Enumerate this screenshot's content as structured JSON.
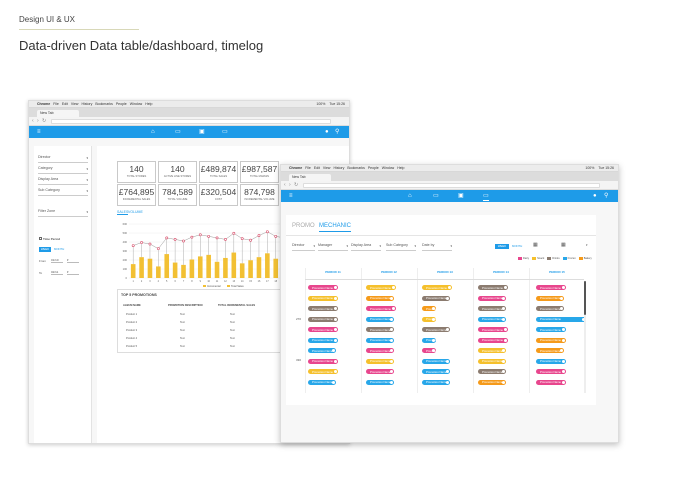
{
  "header": {
    "small": "Design UI & UX",
    "title": "Data-driven Data table/dashboard, timelog"
  },
  "colors": {
    "brand": "#1e9be8",
    "bar": "#f2c033",
    "line": "#d94b68"
  },
  "mac": {
    "items": [
      "Chrome",
      "File",
      "Edit",
      "View",
      "History",
      "Bookmarks",
      "People",
      "Window",
      "Help"
    ],
    "status": "100%",
    "clock1": "Tue 15:26",
    "clock2": "Tue 15:26"
  },
  "tab": "New Tab",
  "filters_left": [
    {
      "label": "Director",
      "value": "▾"
    },
    {
      "label": "Category",
      "value": "▾"
    },
    {
      "label": "Display Area",
      "value": "▾"
    },
    {
      "label": "Sub Category",
      "value": "▾"
    },
    {
      "label": "Filter Zone",
      "value": "▾"
    }
  ],
  "time_period": {
    "label": "Time Period",
    "chip1": "WEEK",
    "chip2": "MONTH",
    "from_label": "From",
    "from_val": "01/10",
    "to_label": "To",
    "to_val": "02/11"
  },
  "kpis": [
    {
      "value": "140",
      "label": "TOTAL STORES"
    },
    {
      "value": "140",
      "label": "ACTIVE LINE STORES"
    },
    {
      "value": "£489,874",
      "label": "TOTAL SALES"
    },
    {
      "value": "£987,587",
      "label": "TOTAL MARGIN"
    },
    {
      "value": "£764,895",
      "label": "INCREMENTAL SALES"
    },
    {
      "value": "784,589",
      "label": "TOTAL VOLUME"
    },
    {
      "value": "£320,504",
      "label": "COST"
    },
    {
      "value": "874,798",
      "label": "INCREMENTAL VOLUME"
    }
  ],
  "chart_tabs": [
    "SALES",
    "VOLUME"
  ],
  "chart_data": {
    "type": "bar",
    "categories": [
      "1",
      "2",
      "3",
      "4",
      "5",
      "6",
      "7",
      "8",
      "9",
      "10",
      "11",
      "12",
      "13",
      "14",
      "15",
      "16",
      "17",
      "18",
      "19",
      "20",
      "21",
      "22",
      "23",
      "24",
      "25",
      "26"
    ],
    "series": [
      {
        "name": "Total Sales",
        "values": [
          180,
          270,
          250,
          150,
          310,
          200,
          170,
          240,
          280,
          300,
          210,
          260,
          330,
          190,
          230,
          270,
          320,
          250,
          200,
          290,
          240,
          300,
          180,
          220,
          260,
          240
        ]
      },
      {
        "name": "Incremental",
        "values": [
          420,
          460,
          440,
          380,
          520,
          500,
          480,
          530,
          560,
          540,
          520,
          500,
          580,
          510,
          490,
          550,
          600,
          540,
          520,
          560,
          530,
          590,
          500,
          520,
          570,
          540
        ]
      }
    ],
    "ylim": [
      0,
      700
    ],
    "yticks": [
      "600",
      "500",
      "400",
      "300",
      "200",
      "100",
      "0"
    ],
    "legend": [
      "Incremental",
      "Total Sales"
    ]
  },
  "top_promos": {
    "title": "TOP 5 PROMOTIONS",
    "headers": [
      "ALBUM NAME",
      "PROMOTION DESCRIPTION",
      "TOTAL INCREMENTAL SALES",
      "TOTAL INCREMENTAL VOLUME"
    ],
    "rows": [
      [
        "Product 1",
        "Text",
        "Text",
        "Text"
      ],
      [
        "Product 2",
        "Text",
        "Text",
        "Text"
      ],
      [
        "Product 3",
        "Text",
        "Text",
        "Text"
      ],
      [
        "Product 4",
        "Text",
        "Text",
        "Text"
      ],
      [
        "Product 5",
        "Text",
        "Text",
        "Text"
      ]
    ]
  },
  "w2": {
    "tabs": [
      "PROMO",
      "MECHANIC"
    ],
    "filters": [
      "Director",
      "Manager",
      "Display Area",
      "Sub Category",
      "Date by"
    ],
    "toggle": [
      "WEEK",
      "MONTH"
    ],
    "legend": [
      {
        "c": "#e8468d",
        "l": "Dairy"
      },
      {
        "c": "#f5c02c",
        "l": "Snack"
      },
      {
        "c": "#8b7b6f",
        "l": "Drinks"
      },
      {
        "c": "#28a7e9",
        "l": "Frozen"
      },
      {
        "c": "#f59a1a",
        "l": "Bakery"
      }
    ],
    "periods": [
      "PERIOD 11",
      "PERIOD 12",
      "PERIOD 13",
      "PERIOD 14",
      "PERIOD 15"
    ],
    "row_labels": [
      "270",
      "330"
    ],
    "pill_text": "Promotion Name"
  }
}
